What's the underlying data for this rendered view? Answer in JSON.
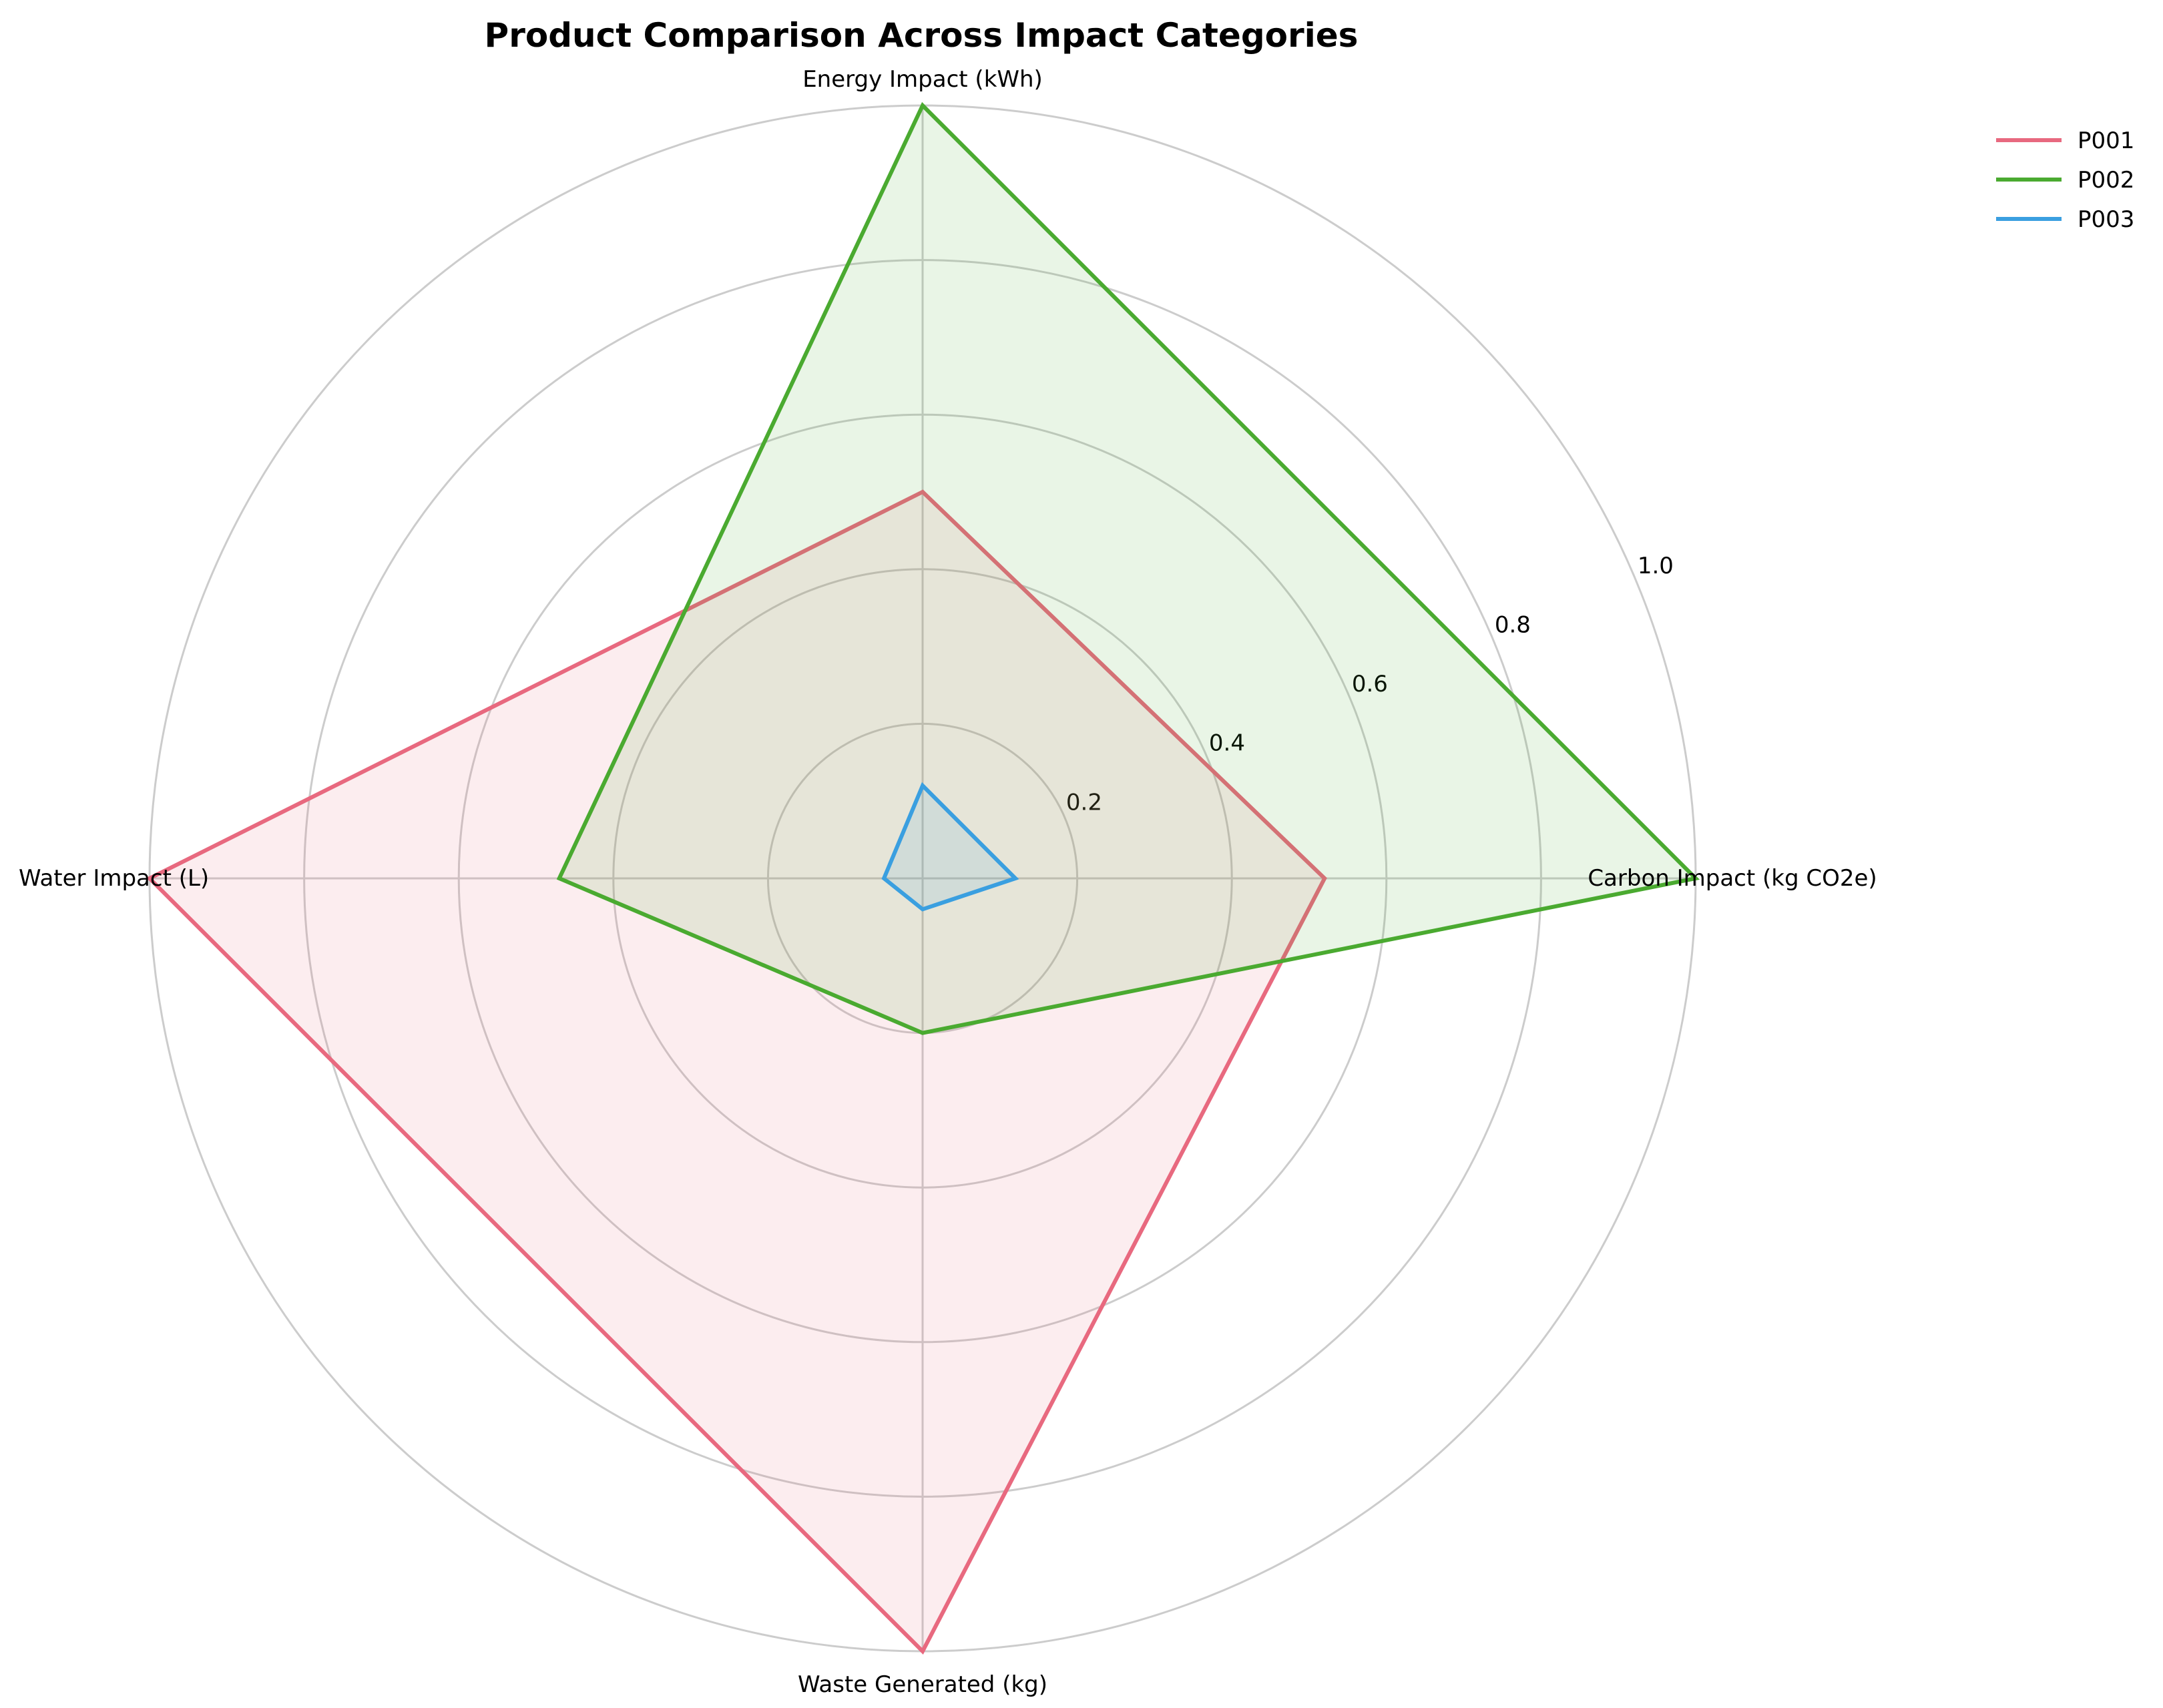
{
  "chart_data": {
    "type": "radar",
    "title": "Product Comparison Across Impact Categories",
    "axes": [
      "Carbon Impact (kg CO2e)",
      "Energy Impact (kWh)",
      "Water Impact (L)",
      "Waste Generated (kg)"
    ],
    "rticks": [
      0.2,
      0.4,
      0.6,
      0.8,
      1.0
    ],
    "rtick_labels": [
      "0.2",
      "0.4",
      "0.6",
      "0.8",
      "1.0"
    ],
    "rlim": [
      0,
      1.0
    ],
    "grid": true,
    "legend_position": "top-right",
    "series": [
      {
        "name": "P001",
        "color": "#e8697f",
        "values": [
          0.52,
          0.5,
          1.0,
          1.0
        ]
      },
      {
        "name": "P002",
        "color": "#4aaa30",
        "values": [
          1.0,
          1.0,
          0.47,
          0.2
        ]
      },
      {
        "name": "P003",
        "color": "#3a9fe0",
        "values": [
          0.12,
          0.12,
          0.05,
          0.04
        ]
      }
    ]
  }
}
